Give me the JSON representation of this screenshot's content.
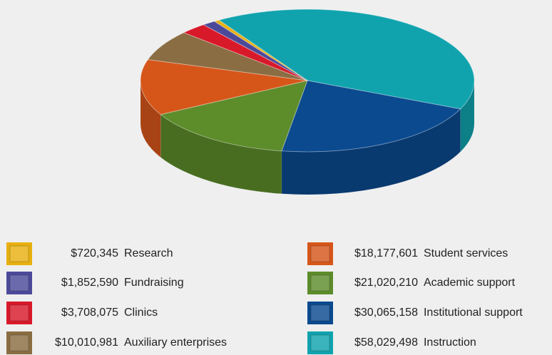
{
  "chart_data": {
    "type": "pie",
    "categories": [
      "Research",
      "Fundraising",
      "Clinics",
      "Auxiliary enterprises",
      "Student services",
      "Academic support",
      "Institutional support",
      "Instruction"
    ],
    "values": [
      720345,
      1852590,
      3708075,
      10010981,
      18177601,
      21020210,
      30065158,
      58029498
    ],
    "value_labels": [
      "$720,345",
      "$1,852,590",
      "$3,708,075",
      "$10,010,981",
      "$18,177,601",
      "$21,020,210",
      "$30,065,158",
      "$58,029,498"
    ],
    "colors": [
      "#e8b010",
      "#4b4a9a",
      "#d8192a",
      "#8a6d42",
      "#d6561a",
      "#5d8c2b",
      "#0b4a8f",
      "#10a3ae"
    ]
  }
}
